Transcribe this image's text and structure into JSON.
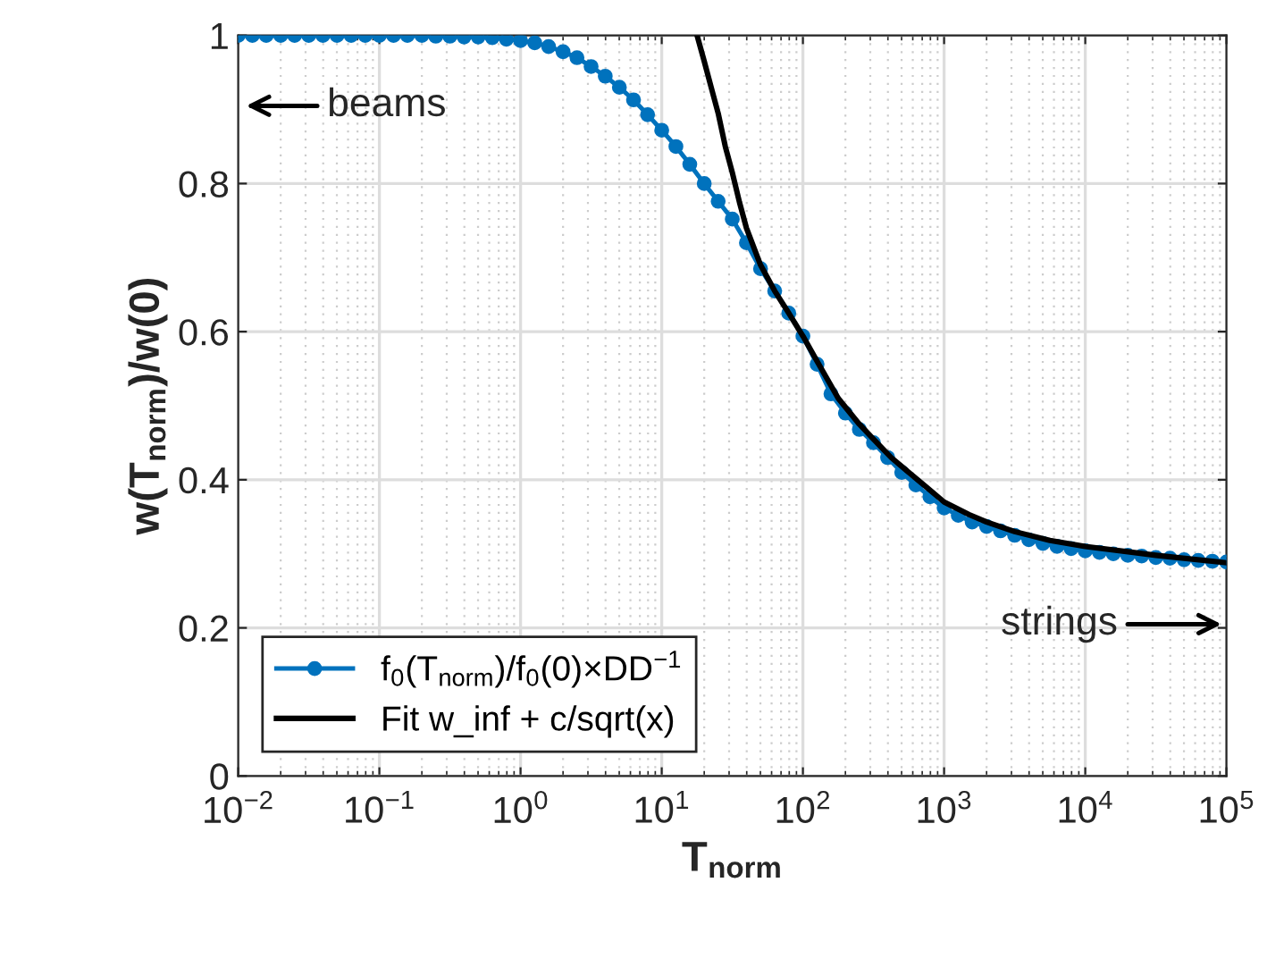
{
  "chart_data": {
    "type": "line",
    "xlabel": "T$_{norm}$",
    "ylabel": "w(T$_{norm}$)/w(0)",
    "log": "x",
    "grid": true,
    "legend": "bottom left",
    "xlim": [
      0.01,
      100000
    ],
    "ylim": [
      0,
      1
    ],
    "xticks": [
      {
        "value": 0.01,
        "label": "10$^{−2}$"
      },
      {
        "value": 0.1,
        "label": "10$^{−1}$"
      },
      {
        "value": 1,
        "label": "10$^{0}$"
      },
      {
        "value": 10,
        "label": "10$^{1}$"
      },
      {
        "value": 100,
        "label": "10$^{2}$"
      },
      {
        "value": 1000,
        "label": "10$^{3}$"
      },
      {
        "value": 10000,
        "label": "10$^{4}$"
      },
      {
        "value": 100000,
        "label": "10$^{5}$"
      }
    ],
    "yticks": [
      0,
      0.2,
      0.4,
      0.6,
      0.8,
      1
    ],
    "annotations": [
      "beams",
      "strings"
    ],
    "series": [
      {
        "name": "f$_{0}$(T$_{norm}$)/f$_{0}$(0)×DD$^{−1}$",
        "color": "#0072bd",
        "marker": "circle",
        "line_style": "solid",
        "x": [
          0.01,
          0.0126,
          0.0158,
          0.02,
          0.0251,
          0.0316,
          0.0398,
          0.0501,
          0.0631,
          0.0794,
          0.1,
          0.126,
          0.158,
          0.2,
          0.251,
          0.316,
          0.398,
          0.501,
          0.631,
          0.794,
          1,
          1.26,
          1.58,
          2,
          2.51,
          3.16,
          3.98,
          5.01,
          6.31,
          7.94,
          10,
          12.6,
          15.8,
          20,
          25.1,
          31.6,
          39.8,
          50.1,
          63.1,
          79.4,
          100,
          126,
          158,
          200,
          251,
          316,
          398,
          501,
          631,
          794,
          1000,
          1260,
          1580,
          2000,
          2510,
          3160,
          3980,
          5010,
          6310,
          7940,
          10000,
          12600,
          15800,
          20000,
          25100,
          31600,
          39800,
          50100,
          63100,
          79400,
          100000
        ],
        "values": [
          1,
          1,
          1,
          1,
          1,
          1,
          1,
          1,
          1,
          1,
          1,
          1,
          1,
          1,
          0.999,
          0.999,
          0.998,
          0.998,
          0.997,
          0.995,
          0.993,
          0.99,
          0.985,
          0.978,
          0.97,
          0.958,
          0.945,
          0.93,
          0.913,
          0.893,
          0.872,
          0.85,
          0.826,
          0.8,
          0.776,
          0.752,
          0.72,
          0.685,
          0.655,
          0.625,
          0.594,
          0.556,
          0.516,
          0.49,
          0.468,
          0.45,
          0.43,
          0.41,
          0.393,
          0.377,
          0.362,
          0.352,
          0.343,
          0.337,
          0.331,
          0.325,
          0.319,
          0.314,
          0.31,
          0.307,
          0.304,
          0.302,
          0.3,
          0.298,
          0.297,
          0.295,
          0.294,
          0.292,
          0.291,
          0.29,
          0.289
        ]
      },
      {
        "name": "Fit w_inf + c/sqrt(x)",
        "color": "#000000",
        "marker": "none",
        "line_style": "solid",
        "x": [
          17.8,
          20,
          22.4,
          25.1,
          28.2,
          31.6,
          35.5,
          39.8,
          50.1,
          63.1,
          79.4,
          100,
          126,
          178,
          251,
          316,
          422,
          562,
          750,
          1000,
          1500,
          2000,
          3160,
          5620,
          10000,
          31600,
          100000
        ],
        "values": [
          1.0,
          0.965,
          0.93,
          0.895,
          0.85,
          0.815,
          0.775,
          0.74,
          0.69,
          0.655,
          0.625,
          0.594,
          0.56,
          0.51,
          0.475,
          0.455,
          0.43,
          0.41,
          0.39,
          0.37,
          0.353,
          0.343,
          0.33,
          0.318,
          0.31,
          0.298,
          0.288
        ]
      }
    ]
  }
}
